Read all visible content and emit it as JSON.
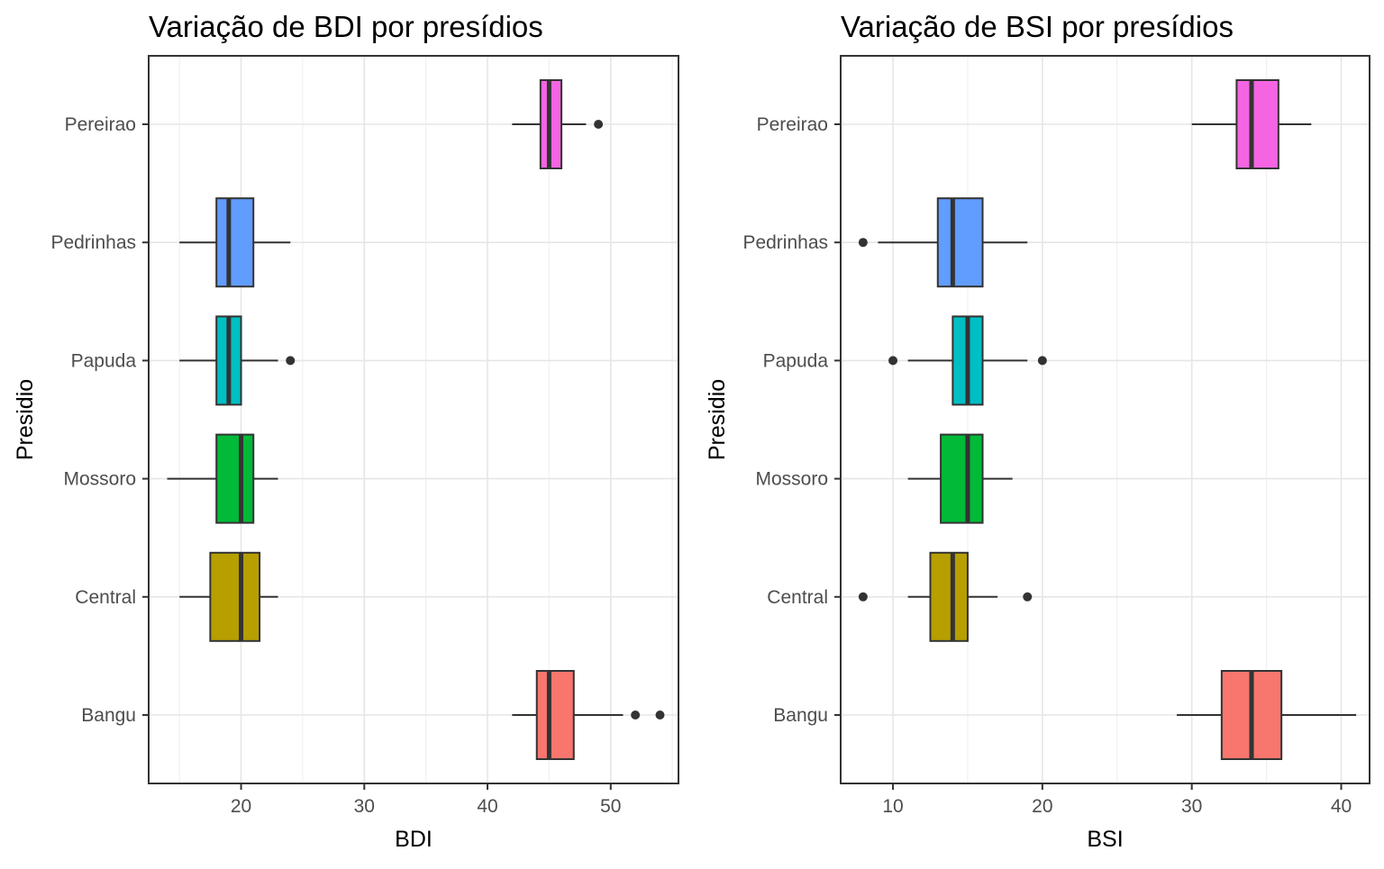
{
  "chart_data": [
    {
      "type": "boxplot",
      "orientation": "horizontal",
      "title": "Variação de BDI por presídios",
      "xlabel": "BDI",
      "ylabel": "Presidio",
      "xlim": [
        12.5,
        55.5
      ],
      "x_ticks": [
        20,
        30,
        40,
        50
      ],
      "grid": true,
      "legend": "none",
      "categories": [
        "Bangu",
        "Central",
        "Mossoro",
        "Papuda",
        "Pedrinhas",
        "Pereirao"
      ],
      "colors": [
        "#F8766D",
        "#B79F00",
        "#00BA38",
        "#00BFC4",
        "#619CFF",
        "#F564E3"
      ],
      "boxes": [
        {
          "category": "Bangu",
          "whisker_low": 42,
          "q1": 44,
          "median": 45,
          "q3": 47,
          "whisker_high": 51,
          "outliers": [
            52,
            54
          ]
        },
        {
          "category": "Central",
          "whisker_low": 15,
          "q1": 17.5,
          "median": 20,
          "q3": 21.5,
          "whisker_high": 23,
          "outliers": []
        },
        {
          "category": "Mossoro",
          "whisker_low": 14,
          "q1": 18,
          "median": 20,
          "q3": 21,
          "whisker_high": 23,
          "outliers": []
        },
        {
          "category": "Papuda",
          "whisker_low": 15,
          "q1": 18,
          "median": 19,
          "q3": 20,
          "whisker_high": 23,
          "outliers": [
            24
          ]
        },
        {
          "category": "Pedrinhas",
          "whisker_low": 15,
          "q1": 18,
          "median": 19,
          "q3": 21,
          "whisker_high": 24,
          "outliers": []
        },
        {
          "category": "Pereirao",
          "whisker_low": 42,
          "q1": 44.3,
          "median": 45,
          "q3": 46,
          "whisker_high": 48,
          "outliers": [
            49
          ]
        }
      ]
    },
    {
      "type": "boxplot",
      "orientation": "horizontal",
      "title": "Variação de BSI por presídios",
      "xlabel": "BSI",
      "ylabel": "Presidio",
      "xlim": [
        6.5,
        41.9
      ],
      "x_ticks": [
        10,
        20,
        30,
        40
      ],
      "grid": true,
      "legend": "none",
      "categories": [
        "Bangu",
        "Central",
        "Mossoro",
        "Papuda",
        "Pedrinhas",
        "Pereirao"
      ],
      "colors": [
        "#F8766D",
        "#B79F00",
        "#00BA38",
        "#00BFC4",
        "#619CFF",
        "#F564E3"
      ],
      "boxes": [
        {
          "category": "Bangu",
          "whisker_low": 29,
          "q1": 32,
          "median": 34,
          "q3": 36,
          "whisker_high": 41,
          "outliers": []
        },
        {
          "category": "Central",
          "whisker_low": 11,
          "q1": 12.5,
          "median": 14,
          "q3": 15,
          "whisker_high": 17,
          "outliers": [
            8,
            19
          ]
        },
        {
          "category": "Mossoro",
          "whisker_low": 11,
          "q1": 13.2,
          "median": 15,
          "q3": 16,
          "whisker_high": 18,
          "outliers": []
        },
        {
          "category": "Papuda",
          "whisker_low": 11,
          "q1": 14,
          "median": 15,
          "q3": 16,
          "whisker_high": 19,
          "outliers": [
            10,
            20
          ]
        },
        {
          "category": "Pedrinhas",
          "whisker_low": 9,
          "q1": 13,
          "median": 14,
          "q3": 16,
          "whisker_high": 19,
          "outliers": [
            8
          ]
        },
        {
          "category": "Pereirao",
          "whisker_low": 30,
          "q1": 33,
          "median": 34,
          "q3": 35.8,
          "whisker_high": 38,
          "outliers": []
        }
      ]
    }
  ]
}
